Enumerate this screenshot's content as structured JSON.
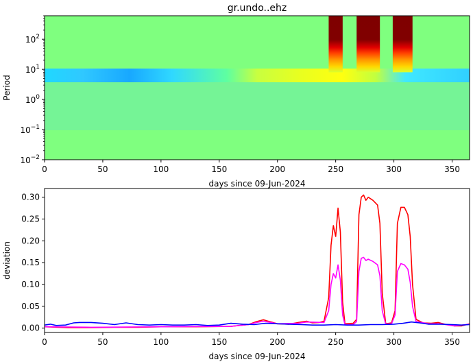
{
  "chart_data": [
    {
      "type": "heatmap",
      "title": "gr.undo..ehz",
      "xlabel": "days since 09-Jun-2024",
      "ylabel": "Period",
      "xlim": [
        0,
        365
      ],
      "ylim": [
        0.01,
        600
      ],
      "yscale": "log",
      "x_ticks": [
        0,
        50,
        100,
        150,
        200,
        250,
        300,
        350
      ],
      "y_ticks": [
        {
          "value": 0.01,
          "mantissa": "10",
          "exp": "−2"
        },
        {
          "value": 0.1,
          "mantissa": "10",
          "exp": "−1"
        },
        {
          "value": 1,
          "mantissa": "10",
          "exp": "0"
        },
        {
          "value": 10,
          "mantissa": "10",
          "exp": "1"
        },
        {
          "value": 100,
          "mantissa": "10",
          "exp": "2"
        }
      ],
      "colormap": "jet",
      "high_bands": [
        {
          "x0": 244,
          "x1": 256
        },
        {
          "x0": 268,
          "x1": 288
        },
        {
          "x0": 299,
          "x1": 316
        }
      ]
    },
    {
      "type": "line",
      "xlabel": "days since 09-Jun-2024",
      "ylabel": "deviation",
      "xlim": [
        0,
        365
      ],
      "ylim": [
        -0.01,
        0.32
      ],
      "x_ticks": [
        0,
        50,
        100,
        150,
        200,
        250,
        300,
        350
      ],
      "y_ticks": [
        "0.00",
        "0.05",
        "0.10",
        "0.15",
        "0.20",
        "0.25",
        "0.30"
      ],
      "series": [
        {
          "color": "#ff0000",
          "points": [
            [
              0,
              0.003
            ],
            [
              20,
              0.001
            ],
            [
              40,
              0.001
            ],
            [
              60,
              0.002
            ],
            [
              80,
              0.002
            ],
            [
              100,
              0.003
            ],
            [
              130,
              0.003
            ],
            [
              160,
              0.004
            ],
            [
              175,
              0.008
            ],
            [
              182,
              0.015
            ],
            [
              188,
              0.019
            ],
            [
              192,
              0.016
            ],
            [
              200,
              0.01
            ],
            [
              210,
              0.009
            ],
            [
              218,
              0.013
            ],
            [
              225,
              0.016
            ],
            [
              230,
              0.012
            ],
            [
              236,
              0.013
            ],
            [
              240,
              0.016
            ],
            [
              244,
              0.07
            ],
            [
              246,
              0.19
            ],
            [
              248,
              0.235
            ],
            [
              250,
              0.21
            ],
            [
              252,
              0.275
            ],
            [
              254,
              0.22
            ],
            [
              256,
              0.06
            ],
            [
              258,
              0.01
            ],
            [
              265,
              0.011
            ],
            [
              268,
              0.02
            ],
            [
              270,
              0.26
            ],
            [
              272,
              0.3
            ],
            [
              274,
              0.305
            ],
            [
              276,
              0.293
            ],
            [
              278,
              0.3
            ],
            [
              282,
              0.293
            ],
            [
              286,
              0.282
            ],
            [
              288,
              0.24
            ],
            [
              290,
              0.08
            ],
            [
              293,
              0.01
            ],
            [
              298,
              0.012
            ],
            [
              301,
              0.04
            ],
            [
              303,
              0.24
            ],
            [
              306,
              0.277
            ],
            [
              309,
              0.277
            ],
            [
              312,
              0.26
            ],
            [
              314,
              0.21
            ],
            [
              316,
              0.1
            ],
            [
              319,
              0.02
            ],
            [
              325,
              0.012
            ],
            [
              332,
              0.011
            ],
            [
              338,
              0.013
            ],
            [
              345,
              0.008
            ],
            [
              352,
              0.005
            ],
            [
              358,
              0.005
            ],
            [
              365,
              0.01
            ]
          ]
        },
        {
          "color": "#ff00ff",
          "points": [
            [
              0,
              0.003
            ],
            [
              40,
              0.002
            ],
            [
              100,
              0.003
            ],
            [
              160,
              0.004
            ],
            [
              175,
              0.008
            ],
            [
              182,
              0.013
            ],
            [
              188,
              0.016
            ],
            [
              192,
              0.014
            ],
            [
              200,
              0.01
            ],
            [
              218,
              0.011
            ],
            [
              225,
              0.014
            ],
            [
              240,
              0.013
            ],
            [
              244,
              0.04
            ],
            [
              246,
              0.1
            ],
            [
              248,
              0.125
            ],
            [
              250,
              0.115
            ],
            [
              252,
              0.145
            ],
            [
              254,
              0.11
            ],
            [
              256,
              0.03
            ],
            [
              258,
              0.008
            ],
            [
              265,
              0.008
            ],
            [
              268,
              0.015
            ],
            [
              270,
              0.13
            ],
            [
              272,
              0.16
            ],
            [
              274,
              0.162
            ],
            [
              276,
              0.155
            ],
            [
              278,
              0.158
            ],
            [
              282,
              0.153
            ],
            [
              286,
              0.145
            ],
            [
              288,
              0.12
            ],
            [
              290,
              0.04
            ],
            [
              293,
              0.009
            ],
            [
              298,
              0.01
            ],
            [
              301,
              0.03
            ],
            [
              303,
              0.13
            ],
            [
              306,
              0.148
            ],
            [
              309,
              0.145
            ],
            [
              312,
              0.135
            ],
            [
              314,
              0.105
            ],
            [
              316,
              0.05
            ],
            [
              319,
              0.015
            ],
            [
              330,
              0.01
            ],
            [
              340,
              0.01
            ],
            [
              352,
              0.005
            ],
            [
              365,
              0.009
            ]
          ]
        },
        {
          "color": "#0000ff",
          "points": [
            [
              0,
              0.007
            ],
            [
              5,
              0.009
            ],
            [
              10,
              0.006
            ],
            [
              18,
              0.007
            ],
            [
              25,
              0.012
            ],
            [
              30,
              0.013
            ],
            [
              40,
              0.013
            ],
            [
              50,
              0.011
            ],
            [
              60,
              0.008
            ],
            [
              70,
              0.012
            ],
            [
              80,
              0.008
            ],
            [
              90,
              0.007
            ],
            [
              100,
              0.008
            ],
            [
              110,
              0.007
            ],
            [
              120,
              0.007
            ],
            [
              130,
              0.008
            ],
            [
              140,
              0.006
            ],
            [
              150,
              0.007
            ],
            [
              160,
              0.011
            ],
            [
              170,
              0.009
            ],
            [
              180,
              0.008
            ],
            [
              190,
              0.011
            ],
            [
              200,
              0.01
            ],
            [
              210,
              0.009
            ],
            [
              220,
              0.008
            ],
            [
              230,
              0.007
            ],
            [
              240,
              0.007
            ],
            [
              250,
              0.008
            ],
            [
              260,
              0.007
            ],
            [
              270,
              0.007
            ],
            [
              280,
              0.008
            ],
            [
              290,
              0.008
            ],
            [
              300,
              0.009
            ],
            [
              308,
              0.011
            ],
            [
              315,
              0.014
            ],
            [
              322,
              0.012
            ],
            [
              330,
              0.009
            ],
            [
              340,
              0.009
            ],
            [
              350,
              0.008
            ],
            [
              358,
              0.007
            ],
            [
              365,
              0.008
            ]
          ]
        }
      ]
    }
  ]
}
